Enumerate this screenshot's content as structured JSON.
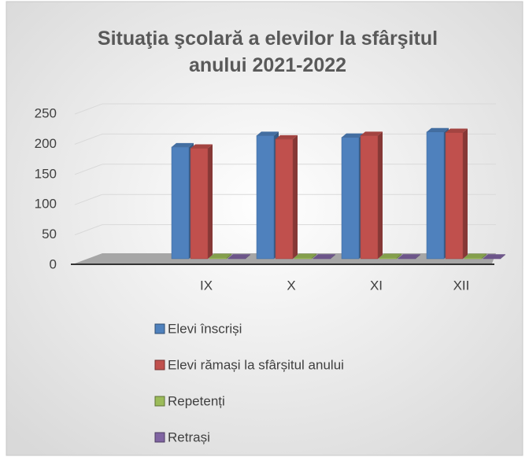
{
  "chart_data": {
    "type": "bar3d",
    "title": "Situaţia şcolară a elevilor la sfârşitul anului 2021-2022",
    "categories": [
      "IX",
      "X",
      "XI",
      "XII"
    ],
    "series": [
      {
        "name": "Elevi înscriși",
        "color": "#4f81bd",
        "values": [
          185,
          204,
          201,
          210
        ]
      },
      {
        "name": "Elevi rămași la sfârșitul anului",
        "color": "#c0504d",
        "values": [
          183,
          198,
          204,
          209
        ]
      },
      {
        "name": "Repetenți",
        "color": "#9bbb59",
        "values": [
          2,
          2,
          2,
          2
        ]
      },
      {
        "name": "Retrași",
        "color": "#8064a2",
        "values": [
          1,
          1,
          1,
          1
        ]
      }
    ],
    "ylim": [
      0,
      250
    ],
    "yticks": [
      0,
      50,
      100,
      150,
      200,
      250
    ],
    "grid": true,
    "legend": "bottom"
  }
}
